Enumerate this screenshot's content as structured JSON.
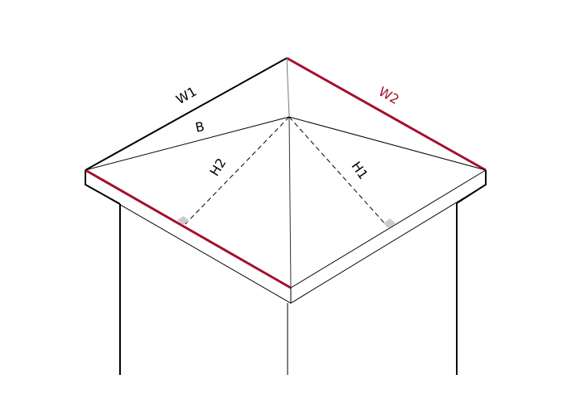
{
  "labels": {
    "w1": "W1",
    "w2": "W2",
    "b": "B",
    "h1": "H1",
    "h2": "H2"
  },
  "colors": {
    "line": "#000000",
    "highlight": "#a50e2d",
    "right_angle_marker": "#cccccc"
  }
}
